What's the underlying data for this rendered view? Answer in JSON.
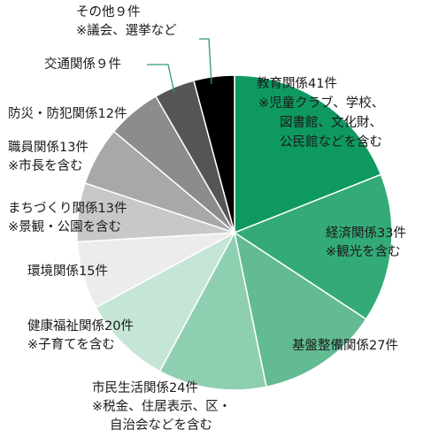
{
  "chart_data": {
    "type": "pie",
    "categories": [
      "教育関係",
      "経済関係",
      "基盤整備関係",
      "市民生活関係",
      "健康福祉関係",
      "環境関係",
      "まちづくり関係",
      "職員関係",
      "防災・防犯関係",
      "交通関係",
      "その他"
    ],
    "values": [
      41,
      33,
      27,
      24,
      20,
      15,
      13,
      13,
      12,
      9,
      9
    ],
    "colors": [
      "#0e9960",
      "#33aa78",
      "#62bb93",
      "#8fcfb1",
      "#c5e6d6",
      "#ececec",
      "#c8c8c8",
      "#a8a8a8",
      "#8c8c8c",
      "#555555",
      "#000000"
    ],
    "labels": [
      [
        "教育関係41件",
        "※児童クラブ、学校、",
        "図書館、文化財、",
        "公民館などを含む"
      ],
      [
        "経済関係33件",
        "※観光を含む"
      ],
      [
        "基盤整備関係27件"
      ],
      [
        "市民生活関係24件",
        "※税金、住居表示、区・",
        "自治会などを含む"
      ],
      [
        "健康福祉関係20件",
        "※子育てを含む"
      ],
      [
        "環境関係15件"
      ],
      [
        "まちづくり関係13件",
        "※景観・公園を含む"
      ],
      [
        "職員関係13件",
        "※市長を含む"
      ],
      [
        "防災・防犯関係12件"
      ],
      [
        "交通関係９件"
      ],
      [
        "その他９件",
        "※議会、選挙など"
      ]
    ]
  }
}
